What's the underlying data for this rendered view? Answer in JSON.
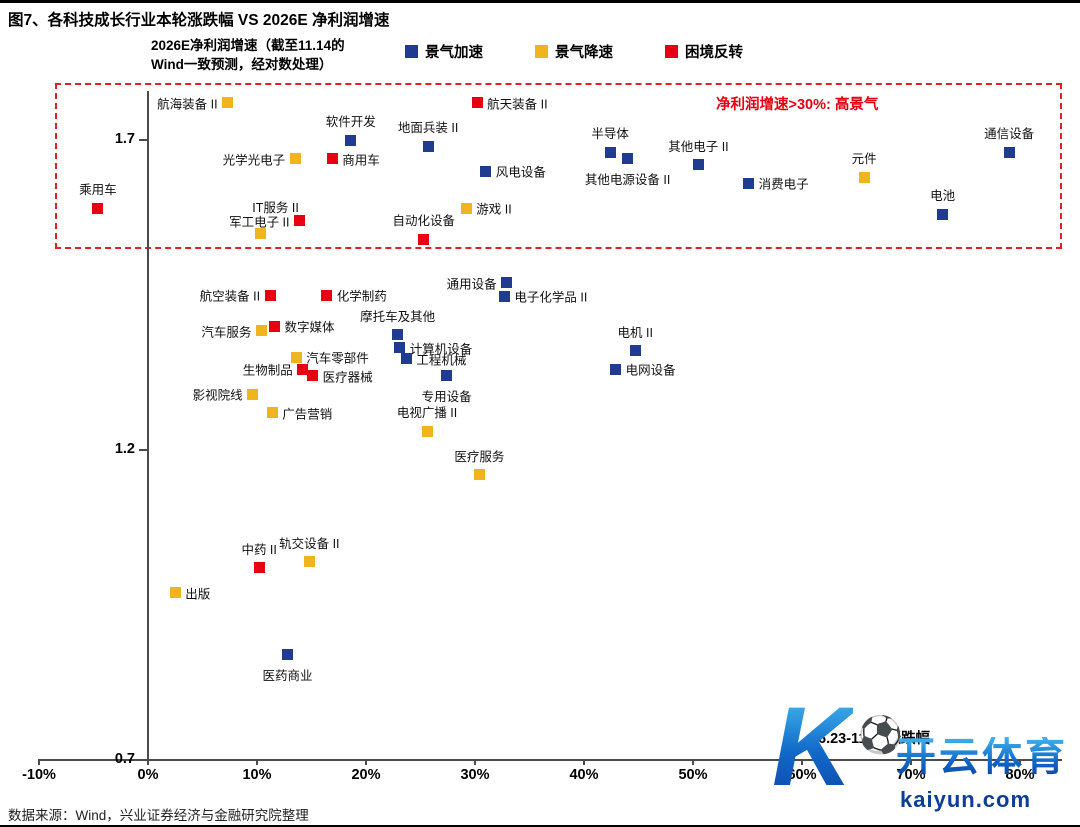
{
  "figure": {
    "title": "图7、各科技成长行业本轮涨跌幅 VS 2026E 净利润增速"
  },
  "footer": {
    "source": "数据来源：Wind，兴业证券经济与金融研究院整理"
  },
  "watermark": {
    "letter": "K",
    "ball_icon": "⚽",
    "brand": "开云体育",
    "domain": "kaiyun.com"
  },
  "chart_data": {
    "type": "scatter",
    "title": "图7、各科技成长行业本轮涨跌幅 VS 2026E 净利润增速",
    "y_axis_note": [
      "2026E净利润增速（截至11.14的",
      "Wind一致预测，经对数处理）"
    ],
    "x_axis_label": "6.23-11.14涨跌幅",
    "annotation": "净利润增速>30%: 高景气",
    "xlim": [
      -10,
      84
    ],
    "ylim": [
      0.7,
      1.8
    ],
    "x_ticks": [
      -10,
      0,
      10,
      20,
      30,
      40,
      50,
      60,
      70,
      80
    ],
    "x_tick_labels": [
      "-10%",
      "0%",
      "10%",
      "20%",
      "30%",
      "40%",
      "50%",
      "60%",
      "70%",
      "80%"
    ],
    "y_ticks": [
      "1.7",
      "1.2",
      "0.7"
    ],
    "y_tick_values": [
      1.7,
      1.2,
      0.7
    ],
    "grid": false,
    "legend_position": "top",
    "legend": [
      {
        "key": "accelerating",
        "label": "景气加速",
        "color": "#1f3c91"
      },
      {
        "key": "decelerating",
        "label": "景气降速",
        "color": "#f0b41e"
      },
      {
        "key": "reversal",
        "label": "困境反转",
        "color": "#e60012"
      }
    ],
    "points": [
      {
        "label": "乘用车",
        "category": "reversal",
        "x": -4.6,
        "y": 1.59,
        "label_side": "top"
      },
      {
        "label": "航海装备 II",
        "category": "decelerating",
        "x": 7.3,
        "y": 1.76,
        "label_side": "left"
      },
      {
        "label": "光学光电子",
        "category": "decelerating",
        "x": 13.5,
        "y": 1.67,
        "label_side": "left"
      },
      {
        "label": "软件开发",
        "category": "accelerating",
        "x": 18.6,
        "y": 1.7,
        "label_side": "top"
      },
      {
        "label": "商用车",
        "category": "reversal",
        "x": 16.9,
        "y": 1.67,
        "label_side": "right"
      },
      {
        "label": "地面兵装 II",
        "category": "accelerating",
        "x": 25.7,
        "y": 1.69,
        "label_side": "top"
      },
      {
        "label": "航天装备 II",
        "category": "reversal",
        "x": 30.2,
        "y": 1.76,
        "label_side": "right"
      },
      {
        "label": "风电设备",
        "category": "accelerating",
        "x": 31.0,
        "y": 1.65,
        "label_side": "right"
      },
      {
        "label": "半导体",
        "category": "accelerating",
        "x": 42.4,
        "y": 1.68,
        "label_side": "top"
      },
      {
        "label": "其他电源设备 II",
        "category": "accelerating",
        "x": 44.0,
        "y": 1.67,
        "label_side": "bottom"
      },
      {
        "label": "其他电子 II",
        "category": "accelerating",
        "x": 50.5,
        "y": 1.66,
        "label_side": "top"
      },
      {
        "label": "消费电子",
        "category": "accelerating",
        "x": 55.1,
        "y": 1.63,
        "label_side": "right"
      },
      {
        "label": "元件",
        "category": "decelerating",
        "x": 65.7,
        "y": 1.64,
        "label_side": "top"
      },
      {
        "label": "通信设备",
        "category": "accelerating",
        "x": 79.0,
        "y": 1.68,
        "label_side": "top"
      },
      {
        "label": "电池",
        "category": "accelerating",
        "x": 72.9,
        "y": 1.58,
        "label_side": "top"
      },
      {
        "label": "IT服务 II",
        "category": "decelerating",
        "x": 10.3,
        "y": 1.55,
        "label_side": "topright"
      },
      {
        "label": "军工电子 II",
        "category": "reversal",
        "x": 13.9,
        "y": 1.57,
        "label_side": "left"
      },
      {
        "label": "自动化设备",
        "category": "reversal",
        "x": 25.3,
        "y": 1.54,
        "label_side": "top"
      },
      {
        "label": "游戏 II",
        "category": "decelerating",
        "x": 29.2,
        "y": 1.59,
        "label_side": "right"
      },
      {
        "label": "航空装备 II",
        "category": "reversal",
        "x": 11.2,
        "y": 1.45,
        "label_side": "left"
      },
      {
        "label": "化学制药",
        "category": "reversal",
        "x": 16.4,
        "y": 1.45,
        "label_side": "right"
      },
      {
        "label": "通用设备",
        "category": "accelerating",
        "x": 32.9,
        "y": 1.47,
        "label_side": "left"
      },
      {
        "label": "电子化学品 II",
        "category": "accelerating",
        "x": 32.7,
        "y": 1.448,
        "label_side": "right"
      },
      {
        "label": "汽车服务",
        "category": "decelerating",
        "x": 10.4,
        "y": 1.392,
        "label_side": "left"
      },
      {
        "label": "数字媒体",
        "category": "reversal",
        "x": 11.6,
        "y": 1.4,
        "label_side": "right"
      },
      {
        "label": "摩托车及其他",
        "category": "accelerating",
        "x": 22.9,
        "y": 1.386,
        "label_side": "top"
      },
      {
        "label": "汽车零部件",
        "category": "decelerating",
        "x": 13.6,
        "y": 1.35,
        "label_side": "right"
      },
      {
        "label": "计算机设备",
        "category": "accelerating",
        "x": 23.1,
        "y": 1.365,
        "label_side": "right"
      },
      {
        "label": "工程机械",
        "category": "accelerating",
        "x": 23.7,
        "y": 1.347,
        "label_side": "right"
      },
      {
        "label": "生物制品",
        "category": "reversal",
        "x": 14.2,
        "y": 1.33,
        "label_side": "left"
      },
      {
        "label": "医疗器械",
        "category": "reversal",
        "x": 15.1,
        "y": 1.32,
        "label_side": "right"
      },
      {
        "label": "专用设备",
        "category": "accelerating",
        "x": 27.4,
        "y": 1.32,
        "label_side": "bottom"
      },
      {
        "label": "电机 II",
        "category": "accelerating",
        "x": 44.7,
        "y": 1.36,
        "label_side": "top"
      },
      {
        "label": "电网设备",
        "category": "accelerating",
        "x": 42.9,
        "y": 1.33,
        "label_side": "right"
      },
      {
        "label": "影视院线",
        "category": "decelerating",
        "x": 9.6,
        "y": 1.29,
        "label_side": "left"
      },
      {
        "label": "广告营销",
        "category": "decelerating",
        "x": 11.4,
        "y": 1.26,
        "label_side": "right"
      },
      {
        "label": "电视广播 II",
        "category": "decelerating",
        "x": 25.6,
        "y": 1.23,
        "label_side": "top"
      },
      {
        "label": "医疗服务",
        "category": "decelerating",
        "x": 30.4,
        "y": 1.16,
        "label_side": "top"
      },
      {
        "label": "中药 II",
        "category": "reversal",
        "x": 10.2,
        "y": 1.01,
        "label_side": "top"
      },
      {
        "label": "轨交设备 II",
        "category": "decelerating",
        "x": 14.8,
        "y": 1.02,
        "label_side": "top"
      },
      {
        "label": "出版",
        "category": "decelerating",
        "x": 2.5,
        "y": 0.97,
        "label_side": "right"
      },
      {
        "label": "医药商业",
        "category": "accelerating",
        "x": 12.8,
        "y": 0.87,
        "label_side": "bottom"
      }
    ]
  }
}
